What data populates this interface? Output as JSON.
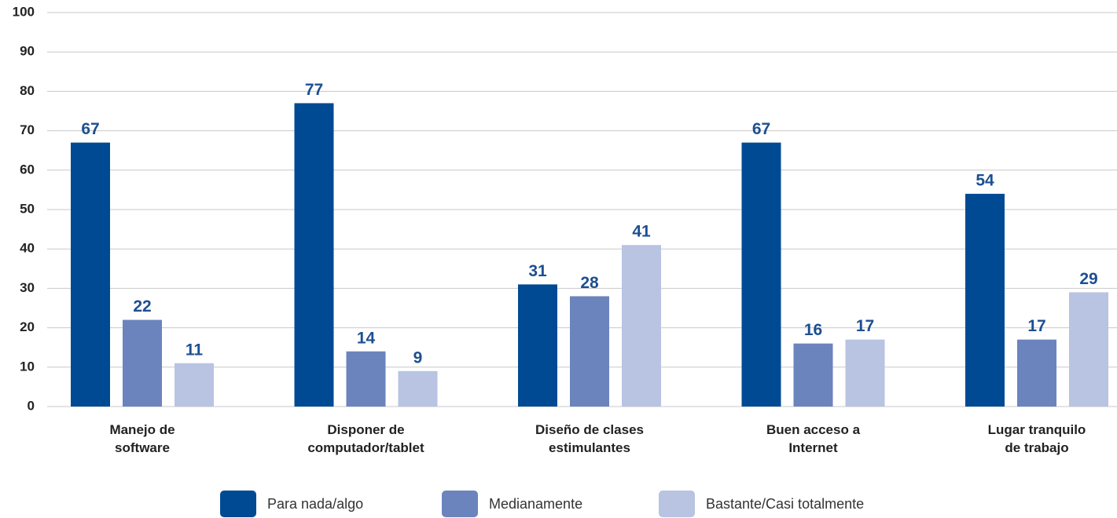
{
  "chart_data": {
    "type": "bar",
    "categories": [
      "Manejo de\nsoftware",
      "Disponer de\ncomputador/tablet",
      "Diseño de clases\nestimulantes",
      "Buen acceso a\nInternet",
      "Lugar tranquilo\nde trabajo"
    ],
    "series": [
      {
        "name": "Para nada/algo",
        "color": "#004a93",
        "values": [
          67,
          77,
          31,
          67,
          54
        ]
      },
      {
        "name": "Medianamente",
        "color": "#6b84bd",
        "values": [
          22,
          14,
          28,
          16,
          17
        ]
      },
      {
        "name": "Bastante/Casi totalmente",
        "color": "#b9c3e2",
        "values": [
          11,
          9,
          41,
          17,
          29
        ]
      }
    ],
    "ylim": [
      0,
      100
    ],
    "yticks": [
      0,
      10,
      20,
      30,
      40,
      50,
      60,
      70,
      80,
      90,
      100
    ],
    "grid": true,
    "legend": "bottom"
  }
}
